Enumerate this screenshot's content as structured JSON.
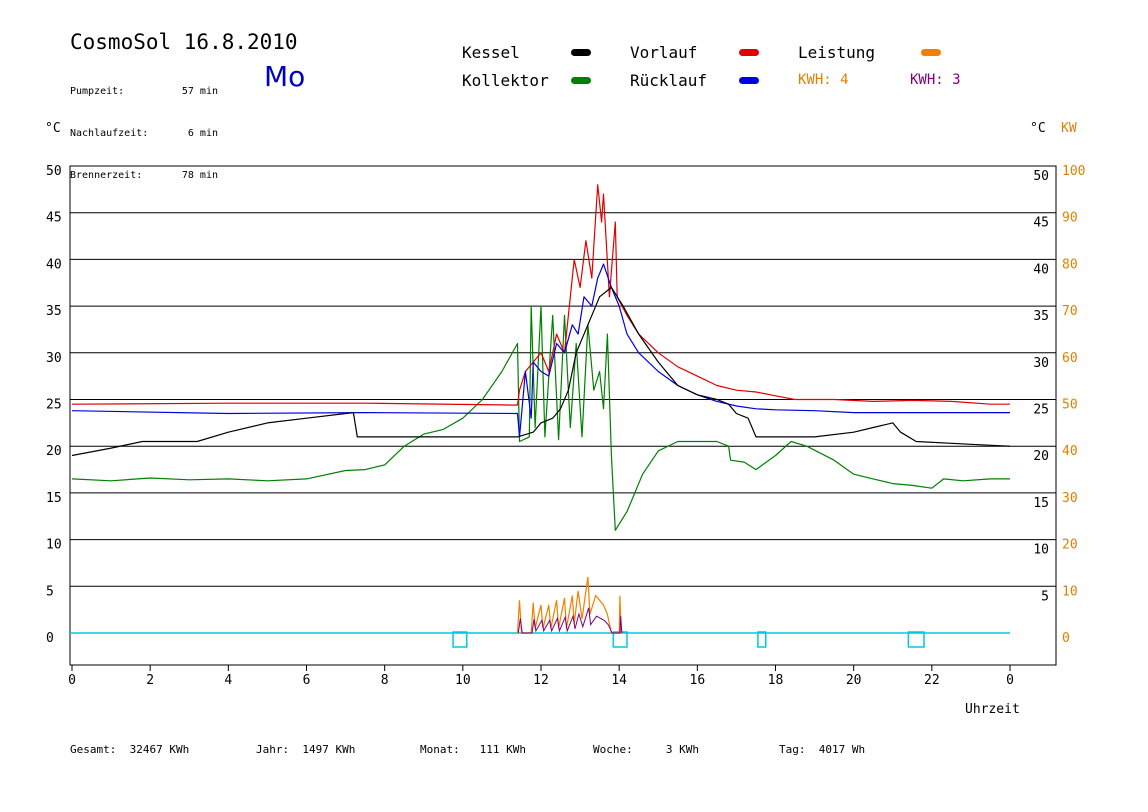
{
  "header": {
    "title": "CosmoSol 16.8.2010",
    "day": "Mo",
    "info": [
      {
        "label": "Pumpzeit:",
        "value": "57 min"
      },
      {
        "label": "Nachlaufzeit:",
        "value": "6 min"
      },
      {
        "label": "Brennerzeit:",
        "value": "78 min"
      }
    ]
  },
  "legend": {
    "kessel": {
      "label": "Kessel",
      "color": "#000000"
    },
    "vorlauf": {
      "label": "Vorlauf",
      "color": "#e00000"
    },
    "leistung": {
      "label": "Leistung",
      "color": "#f08000"
    },
    "kollektor": {
      "label": "Kollektor",
      "color": "#008000"
    },
    "ruecklauf": {
      "label": "Rücklauf",
      "color": "#0000e0"
    },
    "kwh1": {
      "label": "KWH: 4",
      "color": "#e08000"
    },
    "kwh2": {
      "label": "KWH: 3",
      "color": "#800080"
    }
  },
  "axes": {
    "left_unit": "°C",
    "right_unit_c": "°C",
    "right_unit_kw": "KW",
    "x_label": "Uhrzeit"
  },
  "footer": {
    "gesamt": "Gesamt:  32467 KWh",
    "jahr": "Jahr:  1497 KWh",
    "monat": "Monat:   111 KWh",
    "woche": "Woche:     3 KWh",
    "tag": "Tag:  4017 Wh"
  },
  "chart_data": {
    "type": "line",
    "x_ticks": [
      "0",
      "2",
      "4",
      "6",
      "8",
      "10",
      "12",
      "14",
      "16",
      "18",
      "20",
      "22",
      "0"
    ],
    "y_left_ticks": [
      "0",
      "5",
      "10",
      "15",
      "20",
      "25",
      "30",
      "35",
      "40",
      "45",
      "50"
    ],
    "y_right_c_ticks": [
      "5",
      "10",
      "15",
      "20",
      "25",
      "30",
      "35",
      "40",
      "45",
      "50"
    ],
    "y_right_kw_ticks": [
      "0",
      "10",
      "20",
      "30",
      "40",
      "50",
      "60",
      "70",
      "80",
      "90",
      "100"
    ],
    "xlim": [
      0,
      24
    ],
    "ylim": [
      0,
      50
    ],
    "series": [
      {
        "name": "Kollektor",
        "color": "#008000",
        "points": [
          [
            0,
            16.5
          ],
          [
            1,
            16.3
          ],
          [
            2,
            16.6
          ],
          [
            3,
            16.4
          ],
          [
            4,
            16.5
          ],
          [
            5,
            16.3
          ],
          [
            6,
            16.5
          ],
          [
            7,
            17.4
          ],
          [
            7.5,
            17.5
          ],
          [
            8,
            18
          ],
          [
            8.5,
            20
          ],
          [
            9,
            21.3
          ],
          [
            9.5,
            21.8
          ],
          [
            10,
            23
          ],
          [
            10.5,
            25
          ],
          [
            11,
            28
          ],
          [
            11.4,
            31
          ],
          [
            11.45,
            20.5
          ],
          [
            11.7,
            21
          ],
          [
            11.75,
            35
          ],
          [
            11.85,
            22
          ],
          [
            12,
            35
          ],
          [
            12.1,
            21
          ],
          [
            12.3,
            34
          ],
          [
            12.45,
            20.7
          ],
          [
            12.6,
            34
          ],
          [
            12.75,
            22
          ],
          [
            12.9,
            31
          ],
          [
            13.05,
            21
          ],
          [
            13.2,
            33
          ],
          [
            13.35,
            26
          ],
          [
            13.5,
            28
          ],
          [
            13.6,
            24
          ],
          [
            13.7,
            32
          ],
          [
            13.8,
            19
          ],
          [
            13.9,
            11
          ],
          [
            14.2,
            13
          ],
          [
            14.6,
            17
          ],
          [
            15,
            19.5
          ],
          [
            15.5,
            20.5
          ],
          [
            16,
            20.5
          ],
          [
            16.5,
            20.5
          ],
          [
            16.8,
            20
          ],
          [
            16.85,
            18.5
          ],
          [
            17.2,
            18.3
          ],
          [
            17.5,
            17.5
          ],
          [
            18,
            19
          ],
          [
            18.4,
            20.5
          ],
          [
            18.8,
            20
          ],
          [
            19.5,
            18.5
          ],
          [
            20,
            17
          ],
          [
            20.5,
            16.5
          ],
          [
            21,
            16
          ],
          [
            21.5,
            15.8
          ],
          [
            22,
            15.5
          ],
          [
            22.3,
            16.5
          ],
          [
            22.8,
            16.3
          ],
          [
            23.5,
            16.5
          ],
          [
            24,
            16.5
          ]
        ]
      },
      {
        "name": "Vorlauf",
        "color": "#e00000",
        "points": [
          [
            0,
            24.5
          ],
          [
            4,
            24.6
          ],
          [
            7.5,
            24.6
          ],
          [
            11.4,
            24.4
          ],
          [
            11.45,
            26
          ],
          [
            11.6,
            28
          ],
          [
            12,
            30
          ],
          [
            12.2,
            28
          ],
          [
            12.4,
            32
          ],
          [
            12.6,
            30
          ],
          [
            12.75,
            36
          ],
          [
            12.85,
            40
          ],
          [
            13,
            37
          ],
          [
            13.15,
            42
          ],
          [
            13.3,
            38
          ],
          [
            13.45,
            48
          ],
          [
            13.55,
            44
          ],
          [
            13.6,
            47
          ],
          [
            13.75,
            36
          ],
          [
            13.9,
            44
          ],
          [
            13.95,
            36
          ],
          [
            14.2,
            34
          ],
          [
            14.5,
            32
          ],
          [
            15,
            30
          ],
          [
            15.5,
            28.5
          ],
          [
            16,
            27.5
          ],
          [
            16.5,
            26.5
          ],
          [
            17,
            26
          ],
          [
            17.5,
            25.8
          ],
          [
            18,
            25.4
          ],
          [
            18.5,
            25
          ],
          [
            19.5,
            25
          ],
          [
            20.5,
            24.8
          ],
          [
            21.5,
            24.9
          ],
          [
            22.5,
            24.8
          ],
          [
            23.5,
            24.5
          ],
          [
            24,
            24.5
          ]
        ]
      },
      {
        "name": "Rücklauf",
        "color": "#0000e0",
        "points": [
          [
            0,
            23.8
          ],
          [
            4,
            23.5
          ],
          [
            7.5,
            23.6
          ],
          [
            11.4,
            23.5
          ],
          [
            11.45,
            21
          ],
          [
            11.6,
            28
          ],
          [
            11.75,
            23
          ],
          [
            11.8,
            29
          ],
          [
            12,
            28
          ],
          [
            12.2,
            27.5
          ],
          [
            12.4,
            31
          ],
          [
            12.6,
            30
          ],
          [
            12.8,
            33
          ],
          [
            12.95,
            32
          ],
          [
            13.1,
            36
          ],
          [
            13.3,
            35
          ],
          [
            13.45,
            38
          ],
          [
            13.6,
            39.5
          ],
          [
            13.8,
            37
          ],
          [
            14,
            35
          ],
          [
            14.2,
            32
          ],
          [
            14.5,
            30
          ],
          [
            15,
            28
          ],
          [
            15.5,
            26.5
          ],
          [
            16,
            25.5
          ],
          [
            16.5,
            24.8
          ],
          [
            17,
            24.3
          ],
          [
            17.5,
            24
          ],
          [
            18,
            23.9
          ],
          [
            19,
            23.8
          ],
          [
            20,
            23.6
          ],
          [
            21,
            23.6
          ],
          [
            22,
            23.6
          ],
          [
            23,
            23.6
          ],
          [
            24,
            23.6
          ]
        ]
      },
      {
        "name": "Kessel",
        "color": "#000000",
        "points": [
          [
            0,
            19
          ],
          [
            1,
            19.8
          ],
          [
            1.8,
            20.5
          ],
          [
            3.2,
            20.5
          ],
          [
            4,
            21.5
          ],
          [
            5,
            22.5
          ],
          [
            6,
            23
          ],
          [
            7.2,
            23.6
          ],
          [
            7.3,
            21
          ],
          [
            9,
            21
          ],
          [
            10,
            21
          ],
          [
            11.4,
            21
          ],
          [
            11.8,
            21.5
          ],
          [
            12,
            22.5
          ],
          [
            12.3,
            23
          ],
          [
            12.5,
            24
          ],
          [
            12.7,
            26
          ],
          [
            12.9,
            30
          ],
          [
            13.2,
            33
          ],
          [
            13.5,
            36
          ],
          [
            13.8,
            37
          ],
          [
            14.1,
            35
          ],
          [
            14.5,
            32
          ],
          [
            15,
            29
          ],
          [
            15.5,
            26.5
          ],
          [
            16,
            25.5
          ],
          [
            16.5,
            25
          ],
          [
            16.8,
            24.5
          ],
          [
            17,
            23.5
          ],
          [
            17.3,
            23
          ],
          [
            17.5,
            21
          ],
          [
            18.5,
            21
          ],
          [
            19,
            21
          ],
          [
            20,
            21.5
          ],
          [
            20.5,
            22
          ],
          [
            21,
            22.5
          ],
          [
            21.2,
            21.5
          ],
          [
            21.6,
            20.5
          ],
          [
            23,
            20.2
          ],
          [
            24,
            20
          ]
        ]
      }
    ],
    "power_kw": [
      [
        11.4,
        0
      ],
      [
        11.45,
        7
      ],
      [
        11.5,
        0
      ],
      [
        11.75,
        0
      ],
      [
        11.8,
        6.5
      ],
      [
        11.85,
        1
      ],
      [
        12,
        6
      ],
      [
        12.05,
        1
      ],
      [
        12.2,
        6
      ],
      [
        12.25,
        1
      ],
      [
        12.4,
        7
      ],
      [
        12.45,
        1
      ],
      [
        12.6,
        7.5
      ],
      [
        12.65,
        1
      ],
      [
        12.8,
        8
      ],
      [
        12.85,
        2
      ],
      [
        12.95,
        9
      ],
      [
        13.05,
        3
      ],
      [
        13.2,
        12
      ],
      [
        13.25,
        4
      ],
      [
        13.4,
        8
      ],
      [
        13.6,
        6
      ],
      [
        13.7,
        4
      ],
      [
        13.8,
        0
      ],
      [
        14,
        0
      ],
      [
        14.02,
        8
      ],
      [
        14.05,
        0
      ]
    ],
    "pump_intervals": [
      [
        9.75,
        10.1
      ],
      [
        13.85,
        14.2
      ],
      [
        17.55,
        17.75
      ],
      [
        21.4,
        21.8
      ]
    ],
    "cyan_baseline": 0
  }
}
